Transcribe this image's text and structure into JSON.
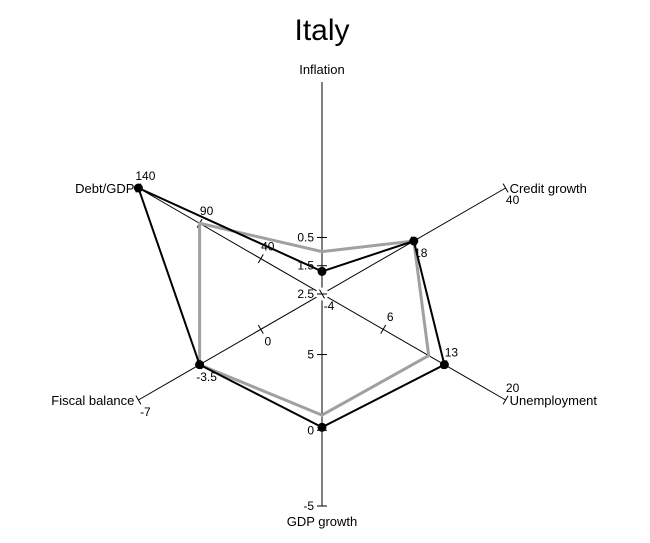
{
  "chart_data": {
    "type": "radar",
    "title": "Italy",
    "axes": [
      {
        "name": "Inflation",
        "min": 2.5,
        "max": -5,
        "tick_labels": [
          "2.5",
          "1.5",
          "0.5"
        ],
        "tick_values": [
          2.5,
          1.5,
          0.5
        ]
      },
      {
        "name": "Credit growth",
        "min": -4,
        "max": 40,
        "tick_labels": [
          "-4",
          "18",
          "40"
        ],
        "tick_values": [
          -4,
          18,
          40
        ]
      },
      {
        "name": "Unemployment",
        "min": -1,
        "max": 20,
        "tick_labels": [
          "6",
          "13",
          "20"
        ],
        "tick_values": [
          6,
          13,
          20
        ]
      },
      {
        "name": "GDP growth",
        "min": 9,
        "max": -5,
        "tick_labels": [
          "5",
          "0",
          "-5"
        ],
        "tick_values": [
          5,
          0,
          -5
        ]
      },
      {
        "name": "Fiscal balance",
        "min": 3.5,
        "max": -7,
        "tick_labels": [
          "0",
          "-3.5",
          "-7"
        ],
        "tick_values": [
          0,
          -3.5,
          -7
        ]
      },
      {
        "name": "Debt/GDP",
        "min": -10,
        "max": 140,
        "tick_labels": [
          "40",
          "90",
          "140"
        ],
        "tick_values": [
          40,
          90,
          140
        ]
      }
    ],
    "series": [
      {
        "color": "#000000",
        "markers": true,
        "values": [
          1.7,
          18,
          13,
          0.2,
          -3.5,
          140
        ]
      },
      {
        "color": "#a0a0a0",
        "markers": false,
        "values": [
          1.0,
          18,
          11.2,
          1.0,
          -3.5,
          90
        ]
      }
    ],
    "grid": false,
    "legend": "none"
  }
}
